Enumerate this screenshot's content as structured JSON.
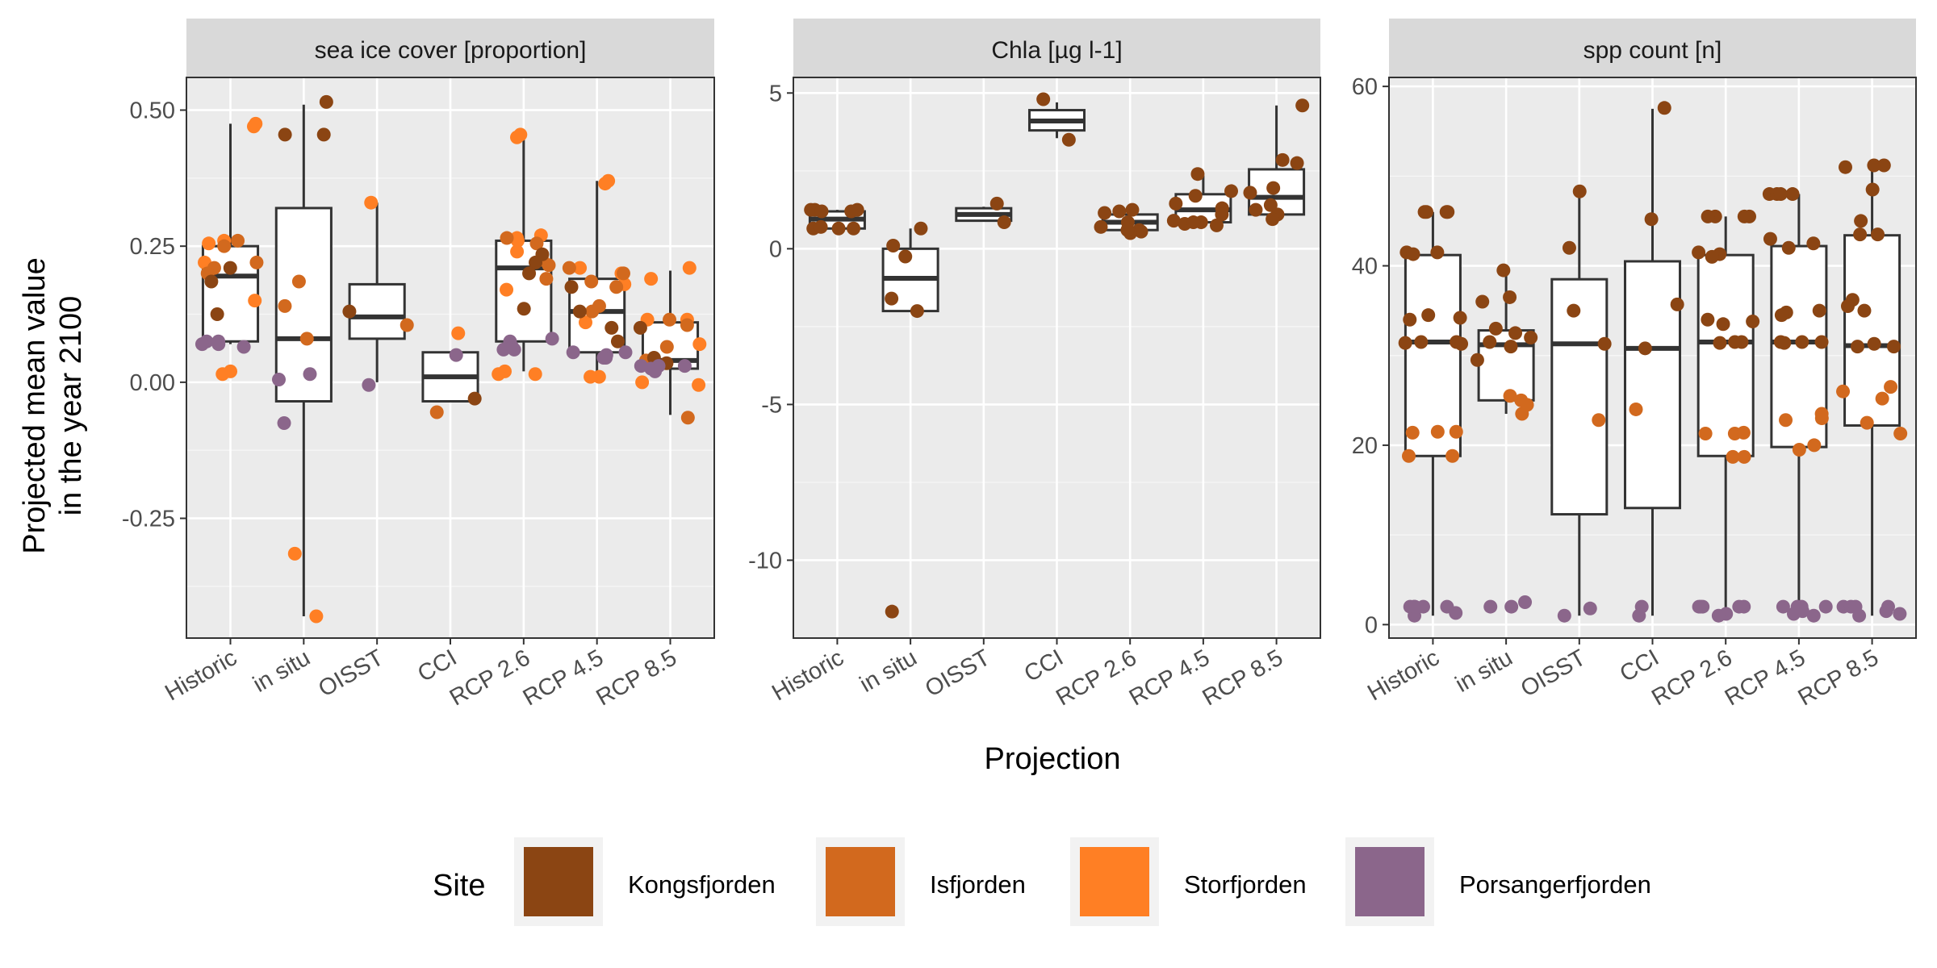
{
  "chart_data": {
    "type": "boxplot",
    "xlabel": "Projection",
    "ylabel": "Projected mean value in the year 2100",
    "ylabel_lines": [
      "Projected mean value",
      "in the year 2100"
    ],
    "categories": [
      "Historic",
      "in situ",
      "OISST",
      "CCI",
      "RCP 2.6",
      "RCP 4.5",
      "RCP 8.5"
    ],
    "legend": {
      "title": "Site",
      "position": "bottom",
      "items": [
        {
          "name": "Kongsfjorden",
          "color": "#8B4513"
        },
        {
          "name": "Isfjorden",
          "color": "#D2691E"
        },
        {
          "name": "Storfjorden",
          "color": "#FF7F24"
        },
        {
          "name": "Porsangerfjorden",
          "color": "#8B668B"
        }
      ]
    },
    "panels": [
      {
        "title": "sea ice cover [proportion]",
        "ylim": [
          -0.47,
          0.56
        ],
        "yticks": [
          0.5,
          0.25,
          0.0,
          -0.25
        ],
        "ytick_labels": [
          "0.50",
          "0.25",
          "0.00",
          "-0.25"
        ],
        "boxes": [
          {
            "category": "Historic",
            "whisker_low": 0.07,
            "q1": 0.075,
            "median": 0.195,
            "q3": 0.25,
            "whisker_high": 0.475
          },
          {
            "category": "in situ",
            "whisker_low": -0.43,
            "q1": -0.035,
            "median": 0.08,
            "q3": 0.32,
            "whisker_high": 0.51
          },
          {
            "category": "OISST",
            "whisker_low": 0.0,
            "q1": 0.08,
            "median": 0.12,
            "q3": 0.18,
            "whisker_high": 0.33
          },
          {
            "category": "CCI",
            "whisker_low": -0.035,
            "q1": -0.035,
            "median": 0.01,
            "q3": 0.055,
            "whisker_high": 0.055
          },
          {
            "category": "RCP 2.6",
            "whisker_low": 0.02,
            "q1": 0.075,
            "median": 0.21,
            "q3": 0.26,
            "whisker_high": 0.45
          },
          {
            "category": "RCP 4.5",
            "whisker_low": 0.01,
            "q1": 0.055,
            "median": 0.13,
            "q3": 0.19,
            "whisker_high": 0.37
          },
          {
            "category": "RCP 8.5",
            "whisker_low": -0.06,
            "q1": 0.025,
            "median": 0.04,
            "q3": 0.11,
            "whisker_high": 0.205
          }
        ],
        "points": [
          {
            "category": "Historic",
            "site": "Storfjorden",
            "values": [
              0.47,
              0.475,
              0.22,
              0.26,
              0.15,
              0.255,
              0.015,
              0.02
            ]
          },
          {
            "category": "Historic",
            "site": "Isfjorden",
            "values": [
              0.26,
              0.21,
              0.2,
              0.22,
              0.25
            ]
          },
          {
            "category": "Historic",
            "site": "Kongsfjorden",
            "values": [
              0.185,
              0.21,
              0.125
            ]
          },
          {
            "category": "Historic",
            "site": "Porsangerfjorden",
            "values": [
              0.075,
              0.065,
              0.07,
              0.075,
              0.07
            ]
          },
          {
            "category": "in situ",
            "site": "Kongsfjorden",
            "values": [
              0.515,
              0.455,
              0.455
            ]
          },
          {
            "category": "in situ",
            "site": "Isfjorden",
            "values": [
              0.185,
              0.14,
              0.08
            ]
          },
          {
            "category": "in situ",
            "site": "Storfjorden",
            "values": [
              -0.315,
              -0.43
            ]
          },
          {
            "category": "in situ",
            "site": "Porsangerfjorden",
            "values": [
              0.015,
              0.005,
              -0.075
            ]
          },
          {
            "category": "OISST",
            "site": "Storfjorden",
            "values": [
              0.33
            ]
          },
          {
            "category": "OISST",
            "site": "Kongsfjorden",
            "values": [
              0.13
            ]
          },
          {
            "category": "OISST",
            "site": "Isfjorden",
            "values": [
              0.105
            ]
          },
          {
            "category": "OISST",
            "site": "Porsangerfjorden",
            "values": [
              -0.005
            ]
          },
          {
            "category": "CCI",
            "site": "Storfjorden",
            "values": [
              0.09
            ]
          },
          {
            "category": "CCI",
            "site": "Porsangerfjorden",
            "values": [
              0.05
            ]
          },
          {
            "category": "CCI",
            "site": "Kongsfjorden",
            "values": [
              -0.03
            ]
          },
          {
            "category": "CCI",
            "site": "Isfjorden",
            "values": [
              -0.055
            ]
          },
          {
            "category": "RCP 2.6",
            "site": "Storfjorden",
            "values": [
              0.45,
              0.455,
              0.265,
              0.27,
              0.26,
              0.24,
              0.17,
              0.02,
              0.015,
              0.015
            ]
          },
          {
            "category": "RCP 2.6",
            "site": "Isfjorden",
            "values": [
              0.265,
              0.255,
              0.225,
              0.215,
              0.19
            ]
          },
          {
            "category": "RCP 2.6",
            "site": "Kongsfjorden",
            "values": [
              0.235,
              0.22,
              0.2,
              0.135
            ]
          },
          {
            "category": "RCP 2.6",
            "site": "Porsangerfjorden",
            "values": [
              0.08,
              0.075,
              0.065,
              0.06,
              0.06
            ]
          },
          {
            "category": "RCP 4.5",
            "site": "Storfjorden",
            "values": [
              0.365,
              0.37,
              0.21,
              0.2,
              0.18,
              0.11,
              0.01,
              0.01
            ]
          },
          {
            "category": "RCP 4.5",
            "site": "Isfjorden",
            "values": [
              0.21,
              0.2,
              0.185,
              0.175,
              0.14,
              0.13
            ]
          },
          {
            "category": "RCP 4.5",
            "site": "Kongsfjorden",
            "values": [
              0.175,
              0.1,
              0.075,
              0.13
            ]
          },
          {
            "category": "RCP 4.5",
            "site": "Porsangerfjorden",
            "values": [
              0.055,
              0.055,
              0.05,
              0.045,
              0.045
            ]
          },
          {
            "category": "RCP 8.5",
            "site": "Storfjorden",
            "values": [
              0.21,
              0.19,
              0.115,
              0.115,
              0.07,
              0.0,
              -0.005
            ]
          },
          {
            "category": "RCP 8.5",
            "site": "Isfjorden",
            "values": [
              0.115,
              0.105,
              -0.065,
              0.04,
              0.065
            ]
          },
          {
            "category": "RCP 8.5",
            "site": "Kongsfjorden",
            "values": [
              0.1,
              0.045,
              0.035
            ]
          },
          {
            "category": "RCP 8.5",
            "site": "Porsangerfjorden",
            "values": [
              0.03,
              0.03,
              0.025,
              0.02,
              0.03
            ]
          }
        ]
      },
      {
        "title": "Chla [µg l-1]",
        "ylim": [
          -12.5,
          5.5
        ],
        "yticks": [
          5,
          0,
          -5,
          -10
        ],
        "ytick_labels": [
          "5",
          "0",
          "-5",
          "-10"
        ],
        "boxes": [
          {
            "category": "Historic",
            "whisker_low": 0.65,
            "q1": 0.65,
            "median": 0.95,
            "q3": 1.2,
            "whisker_high": 1.25
          },
          {
            "category": "in situ",
            "whisker_low": -2.0,
            "q1": -2.0,
            "median": -0.95,
            "q3": 0.0,
            "whisker_high": 0.65
          },
          {
            "category": "OISST",
            "whisker_low": 0.9,
            "q1": 0.9,
            "median": 1.1,
            "q3": 1.3,
            "whisker_high": 1.35
          },
          {
            "category": "CCI",
            "whisker_low": 3.55,
            "q1": 3.8,
            "median": 4.1,
            "q3": 4.45,
            "whisker_high": 4.7
          },
          {
            "category": "RCP 2.6",
            "whisker_low": 0.5,
            "q1": 0.6,
            "median": 0.85,
            "q3": 1.1,
            "whisker_high": 1.2
          },
          {
            "category": "RCP 4.5",
            "whisker_low": 0.75,
            "q1": 0.85,
            "median": 1.25,
            "q3": 1.75,
            "whisker_high": 2.35
          },
          {
            "category": "RCP 8.5",
            "whisker_low": 0.9,
            "q1": 1.1,
            "median": 1.65,
            "q3": 2.55,
            "whisker_high": 4.6
          }
        ],
        "points": [
          {
            "category": "Historic",
            "site": "Kongsfjorden",
            "values": [
              1.25,
              1.25,
              1.2,
              1.25,
              1.2,
              0.65,
              0.65,
              0.7,
              0.65
            ]
          },
          {
            "category": "in situ",
            "site": "Kongsfjorden",
            "values": [
              0.65,
              0.1,
              -0.25,
              -1.6,
              -2.0,
              -11.65
            ]
          },
          {
            "category": "OISST",
            "site": "Kongsfjorden",
            "values": [
              1.45,
              0.85
            ]
          },
          {
            "category": "CCI",
            "site": "Kongsfjorden",
            "values": [
              4.8,
              3.5
            ]
          },
          {
            "category": "RCP 2.6",
            "site": "Kongsfjorden",
            "values": [
              1.2,
              1.15,
              1.25,
              0.85,
              0.7,
              0.6,
              0.55,
              0.5,
              0.6
            ]
          },
          {
            "category": "RCP 4.5",
            "site": "Kongsfjorden",
            "values": [
              2.4,
              1.85,
              1.7,
              1.45,
              1.3,
              1.1,
              0.9,
              0.85,
              0.8,
              0.75,
              0.85
            ]
          },
          {
            "category": "RCP 8.5",
            "site": "Kongsfjorden",
            "values": [
              4.6,
              2.85,
              2.75,
              1.95,
              1.8,
              1.4,
              1.25,
              1.1,
              0.95
            ]
          }
        ]
      },
      {
        "title": "spp count [n]",
        "ylim": [
          -1.5,
          61
        ],
        "yticks": [
          60,
          40,
          20,
          0
        ],
        "ytick_labels": [
          "60",
          "40",
          "20",
          "0"
        ],
        "boxes": [
          {
            "category": "Historic",
            "whisker_low": 1,
            "q1": 18.8,
            "median": 31.5,
            "q3": 41.2,
            "whisker_high": 46
          },
          {
            "category": "in situ",
            "whisker_low": 23.5,
            "q1": 25,
            "median": 31.2,
            "q3": 32.8,
            "whisker_high": 39.5
          },
          {
            "category": "OISST",
            "whisker_low": 1,
            "q1": 12.3,
            "median": 31.3,
            "q3": 38.5,
            "whisker_high": 48.3
          },
          {
            "category": "CCI",
            "whisker_low": 1,
            "q1": 13,
            "median": 30.8,
            "q3": 40.5,
            "whisker_high": 57.5
          },
          {
            "category": "RCP 2.6",
            "whisker_low": 1,
            "q1": 18.8,
            "median": 31.5,
            "q3": 41.2,
            "whisker_high": 45.5
          },
          {
            "category": "RCP 4.5",
            "whisker_low": 1,
            "q1": 19.8,
            "median": 31.5,
            "q3": 42.2,
            "whisker_high": 48
          },
          {
            "category": "RCP 8.5",
            "whisker_low": 1,
            "q1": 22.2,
            "median": 31.1,
            "q3": 43.4,
            "whisker_high": 51.2
          }
        ],
        "points": [
          {
            "category": "Historic",
            "site": "Kongsfjorden",
            "values": [
              46,
              46,
              46,
              46,
              41.5,
              41.5,
              41.3,
              34.2,
              34.5,
              34,
              31.5,
              31.5,
              31.3,
              31.4
            ]
          },
          {
            "category": "Historic",
            "site": "Isfjorden",
            "values": [
              21.5,
              21.4,
              21.5,
              18.8,
              18.8
            ]
          },
          {
            "category": "Historic",
            "site": "Porsangerfjorden",
            "values": [
              2,
              2,
              2,
              2,
              1,
              1.3,
              2
            ]
          },
          {
            "category": "in situ",
            "site": "Kongsfjorden",
            "values": [
              39.5,
              36.5,
              36,
              33,
              32.5,
              32,
              31.5,
              31,
              29.5
            ]
          },
          {
            "category": "in situ",
            "site": "Isfjorden",
            "values": [
              25.5,
              25,
              24.5,
              23.5
            ]
          },
          {
            "category": "in situ",
            "site": "Porsangerfjorden",
            "values": [
              2,
              2.5,
              2
            ]
          },
          {
            "category": "OISST",
            "site": "Kongsfjorden",
            "values": [
              48.3,
              42,
              35,
              31.3
            ]
          },
          {
            "category": "OISST",
            "site": "Isfjorden",
            "values": [
              22.8
            ]
          },
          {
            "category": "OISST",
            "site": "Porsangerfjorden",
            "values": [
              1.8,
              1
            ]
          },
          {
            "category": "CCI",
            "site": "Kongsfjorden",
            "values": [
              57.6,
              45.2,
              35.7,
              30.8
            ]
          },
          {
            "category": "CCI",
            "site": "Isfjorden",
            "values": [
              24
            ]
          },
          {
            "category": "CCI",
            "site": "Porsangerfjorden",
            "values": [
              2,
              1
            ]
          },
          {
            "category": "RCP 2.6",
            "site": "Kongsfjorden",
            "values": [
              45.5,
              45.5,
              45.5,
              45.5,
              41.5,
              41.3,
              41,
              34,
              33.5,
              33.8,
              31.5,
              31.4,
              31.5
            ]
          },
          {
            "category": "RCP 2.6",
            "site": "Isfjorden",
            "values": [
              21.3,
              21.3,
              21.4,
              18.7,
              18.7
            ]
          },
          {
            "category": "RCP 2.6",
            "site": "Porsangerfjorden",
            "values": [
              2,
              2,
              2,
              2,
              1.2,
              1,
              2
            ]
          },
          {
            "category": "RCP 4.5",
            "site": "Kongsfjorden",
            "values": [
              48,
              48,
              48,
              48,
              43,
              42.5,
              42,
              35,
              34.8,
              34.5,
              31.5,
              31.5,
              31.4,
              31.5
            ]
          },
          {
            "category": "RCP 4.5",
            "site": "Isfjorden",
            "values": [
              23.5,
              23,
              22.8,
              20,
              19.5
            ]
          },
          {
            "category": "RCP 4.5",
            "site": "Porsangerfjorden",
            "values": [
              2,
              2,
              2,
              1.5,
              1,
              1.2,
              2
            ]
          },
          {
            "category": "RCP 8.5",
            "site": "Kongsfjorden",
            "values": [
              51.2,
              51.2,
              51,
              48.5,
              45,
              43.5,
              43.5,
              36.2,
              35.5,
              35,
              31.3,
              31,
              31
            ]
          },
          {
            "category": "RCP 8.5",
            "site": "Isfjorden",
            "values": [
              26.5,
              26,
              25.2,
              22.5,
              21.3
            ]
          },
          {
            "category": "RCP 8.5",
            "site": "Porsangerfjorden",
            "values": [
              2,
              2,
              2,
              1.5,
              1,
              1.2,
              2
            ]
          }
        ]
      }
    ]
  }
}
